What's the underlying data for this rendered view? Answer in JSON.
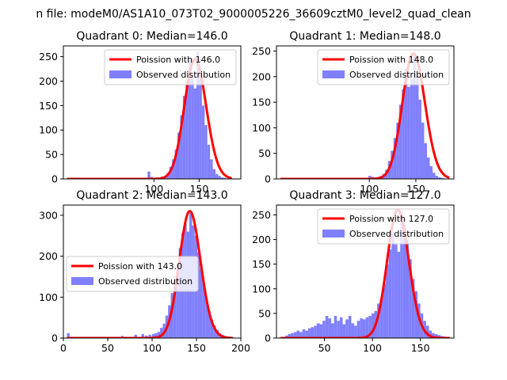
{
  "figure": {
    "suptitle": "n file: modeM0/AS1A10_073T02_9000005226_36609cztM0_level2_quad_clean"
  },
  "colors": {
    "hist": "#8080ff",
    "curve": "#ff0000",
    "axis": "#000000",
    "background": "#ffffff"
  },
  "chart_data": [
    {
      "type": "histogram",
      "title": "Quadrant 0: Median=146.0",
      "xlabel": "",
      "ylabel": "",
      "xlim": [
        0,
        196
      ],
      "ylim": [
        0,
        272
      ],
      "xticks": [
        100,
        150
      ],
      "yticks": [
        0,
        50,
        100,
        150,
        200,
        250
      ],
      "legend": {
        "position": "top-right",
        "entries": [
          "Poission with 146.0",
          "Observed distribution"
        ]
      },
      "series": [
        {
          "name": "Observed distribution",
          "kind": "bars",
          "bin_width": 3,
          "x": [
            93,
            96,
            99,
            102,
            105,
            108,
            111,
            114,
            117,
            120,
            123,
            126,
            129,
            132,
            135,
            138,
            141,
            144,
            147,
            150,
            153,
            156,
            159,
            162,
            165,
            168,
            171,
            174,
            177
          ],
          "values": [
            15,
            4,
            2,
            3,
            2,
            5,
            6,
            12,
            25,
            40,
            60,
            95,
            130,
            170,
            200,
            245,
            210,
            185,
            260,
            215,
            150,
            110,
            70,
            40,
            20,
            10,
            6,
            3,
            2
          ]
        },
        {
          "name": "Poission with 146.0",
          "kind": "line",
          "mean": 146,
          "scale": 245,
          "x_range": [
            5,
            185
          ]
        }
      ]
    },
    {
      "type": "histogram",
      "title": "Quadrant 1: Median=148.0",
      "xlabel": "",
      "ylabel": "",
      "xlim": [
        0,
        191
      ],
      "ylim": [
        0,
        260
      ],
      "xticks": [
        100,
        150
      ],
      "yticks": [
        0,
        50,
        100,
        150,
        200,
        250
      ],
      "legend": {
        "position": "top-right",
        "entries": [
          "Poission with 148.0",
          "Observed distribution"
        ]
      },
      "series": [
        {
          "name": "Observed distribution",
          "kind": "bars",
          "bin_width": 3,
          "x": [
            99,
            102,
            105,
            108,
            111,
            114,
            117,
            120,
            123,
            126,
            129,
            132,
            135,
            138,
            141,
            144,
            147,
            150,
            153,
            156,
            159,
            162,
            165,
            168,
            171,
            174,
            177
          ],
          "values": [
            6,
            4,
            3,
            4,
            6,
            10,
            18,
            35,
            55,
            80,
            110,
            145,
            175,
            215,
            180,
            195,
            245,
            200,
            155,
            110,
            70,
            42,
            25,
            12,
            6,
            3,
            2
          ]
        },
        {
          "name": "Poission with 148.0",
          "kind": "line",
          "mean": 148,
          "scale": 245,
          "x_range": [
            5,
            185
          ]
        }
      ]
    },
    {
      "type": "histogram",
      "title": "Quadrant 2: Median=143.0",
      "xlabel": "",
      "ylabel": "",
      "xlim": [
        0,
        200
      ],
      "ylim": [
        0,
        325
      ],
      "xticks": [
        0,
        50,
        100,
        150,
        200
      ],
      "yticks": [
        0,
        100,
        200,
        300
      ],
      "legend": {
        "position": "center-left",
        "entries": [
          "Poission with 143.0",
          "Observed distribution"
        ]
      },
      "series": [
        {
          "name": "Observed distribution",
          "kind": "bars",
          "bin_width": 3,
          "x": [
            4,
            65,
            80,
            88,
            92,
            96,
            100,
            103,
            106,
            109,
            112,
            115,
            118,
            121,
            124,
            127,
            130,
            133,
            136,
            139,
            142,
            145,
            148,
            151,
            154,
            157,
            160,
            163,
            166,
            169,
            172,
            175,
            178,
            181,
            184,
            187
          ],
          "values": [
            12,
            5,
            8,
            10,
            6,
            8,
            10,
            12,
            15,
            25,
            35,
            55,
            80,
            110,
            150,
            180,
            220,
            255,
            280,
            260,
            305,
            275,
            250,
            210,
            170,
            130,
            95,
            65,
            45,
            30,
            20,
            12,
            8,
            5,
            3,
            2
          ]
        },
        {
          "name": "Poission with 143.0",
          "kind": "line",
          "mean": 143,
          "scale": 310,
          "x_range": [
            5,
            190
          ]
        }
      ]
    },
    {
      "type": "histogram",
      "title": "Quadrant 3: Median=127.0",
      "xlabel": "",
      "ylabel": "",
      "xlim": [
        0,
        185
      ],
      "ylim": [
        0,
        270
      ],
      "xticks": [
        50,
        100,
        150
      ],
      "yticks": [
        0,
        50,
        100,
        150,
        200,
        250
      ],
      "legend": {
        "position": "top-right",
        "entries": [
          "Poission with 127.0",
          "Observed distribution"
        ]
      },
      "series": [
        {
          "name": "Observed distribution",
          "kind": "bars",
          "bin_width": 3,
          "x": [
            9,
            12,
            15,
            18,
            21,
            24,
            27,
            30,
            33,
            36,
            39,
            42,
            45,
            48,
            51,
            54,
            57,
            60,
            63,
            66,
            69,
            72,
            75,
            78,
            81,
            84,
            87,
            90,
            93,
            96,
            99,
            102,
            105,
            108,
            111,
            114,
            117,
            120,
            123,
            126,
            129,
            132,
            135,
            138,
            141,
            144,
            147,
            150,
            153,
            156,
            159,
            162,
            165,
            168,
            171,
            174
          ],
          "values": [
            5,
            8,
            10,
            12,
            15,
            12,
            18,
            15,
            20,
            22,
            25,
            30,
            28,
            35,
            45,
            40,
            30,
            45,
            35,
            42,
            28,
            38,
            45,
            30,
            25,
            35,
            40,
            38,
            42,
            45,
            50,
            55,
            70,
            80,
            110,
            150,
            180,
            215,
            190,
            175,
            255,
            230,
            200,
            160,
            120,
            95,
            70,
            50,
            35,
            25,
            15,
            10,
            8,
            6,
            4,
            3
          ]
        },
        {
          "name": "Poission with 127.0",
          "kind": "line",
          "mean": 127,
          "scale": 260,
          "x_range": [
            5,
            180
          ]
        }
      ]
    }
  ]
}
